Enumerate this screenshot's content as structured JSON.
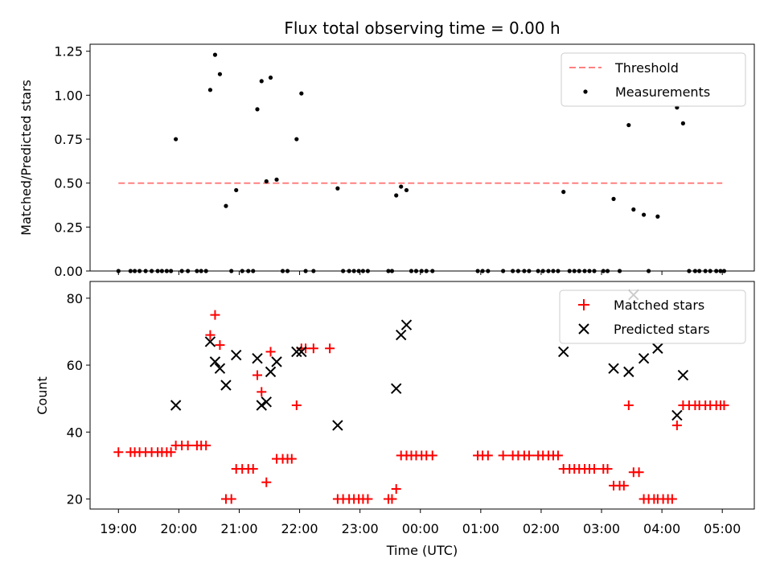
{
  "chart_data": [
    {
      "type": "scatter",
      "title": "Flux total observing time = 0.00 h",
      "xlabel": "",
      "ylabel": "Matched/Predicted stars",
      "ylim": [
        0,
        1.29
      ],
      "y_ticks": [
        0,
        0.25,
        0.5,
        0.75,
        1.0,
        1.25
      ],
      "y_tick_labels": [
        "0.00",
        "0.25",
        "0.50",
        "0.75",
        "1.00",
        "1.25"
      ],
      "x_ticks": [
        0,
        1,
        2,
        3,
        4,
        5,
        6,
        7,
        8,
        9,
        10
      ],
      "x_tick_labels": [
        "19:00",
        "20:00",
        "21:00",
        "22:00",
        "23:00",
        "00:00",
        "01:00",
        "02:00",
        "03:00",
        "04:00",
        "05:00"
      ],
      "xlim": [
        -0.47,
        10.53
      ],
      "legend": "top-right",
      "threshold": {
        "name": "Threshold",
        "value": 0.5,
        "x_range": [
          0,
          10
        ],
        "color": "#ff8080"
      },
      "measurements": {
        "name": "Measurements",
        "color": "#000000",
        "points": [
          [
            0.0,
            0
          ],
          [
            0.2,
            0
          ],
          [
            0.27,
            0
          ],
          [
            0.35,
            0
          ],
          [
            0.45,
            0
          ],
          [
            0.55,
            0
          ],
          [
            0.65,
            0
          ],
          [
            0.72,
            0
          ],
          [
            0.8,
            0
          ],
          [
            0.87,
            0
          ],
          [
            0.95,
            0.75
          ],
          [
            1.05,
            0
          ],
          [
            1.15,
            0
          ],
          [
            1.3,
            0
          ],
          [
            1.37,
            0
          ],
          [
            1.45,
            0
          ],
          [
            1.52,
            1.03
          ],
          [
            1.6,
            1.23
          ],
          [
            1.68,
            1.12
          ],
          [
            1.78,
            0.37
          ],
          [
            1.87,
            0
          ],
          [
            1.95,
            0.46
          ],
          [
            2.05,
            0
          ],
          [
            2.15,
            0
          ],
          [
            2.23,
            0
          ],
          [
            2.3,
            0.92
          ],
          [
            2.37,
            1.08
          ],
          [
            2.45,
            0.51
          ],
          [
            2.52,
            1.1
          ],
          [
            2.62,
            0.52
          ],
          [
            2.72,
            0
          ],
          [
            2.8,
            0
          ],
          [
            2.95,
            0.75
          ],
          [
            3.03,
            1.01
          ],
          [
            3.1,
            0
          ],
          [
            3.23,
            0
          ],
          [
            3.63,
            0.47
          ],
          [
            3.72,
            0
          ],
          [
            3.82,
            0
          ],
          [
            3.9,
            0
          ],
          [
            3.98,
            0
          ],
          [
            4.05,
            0
          ],
          [
            4.13,
            0
          ],
          [
            4.47,
            0
          ],
          [
            4.53,
            0
          ],
          [
            4.6,
            0.43
          ],
          [
            4.68,
            0.48
          ],
          [
            4.77,
            0.46
          ],
          [
            4.85,
            0
          ],
          [
            4.93,
            0
          ],
          [
            5.02,
            0
          ],
          [
            5.1,
            0
          ],
          [
            5.2,
            0
          ],
          [
            5.95,
            0
          ],
          [
            6.03,
            0
          ],
          [
            6.12,
            0
          ],
          [
            6.37,
            0
          ],
          [
            6.53,
            0
          ],
          [
            6.62,
            0
          ],
          [
            6.72,
            0
          ],
          [
            6.8,
            0
          ],
          [
            6.95,
            0
          ],
          [
            7.03,
            0
          ],
          [
            7.12,
            0
          ],
          [
            7.2,
            0
          ],
          [
            7.28,
            0
          ],
          [
            7.37,
            0.45
          ],
          [
            7.47,
            0
          ],
          [
            7.55,
            0
          ],
          [
            7.63,
            0
          ],
          [
            7.72,
            0
          ],
          [
            7.8,
            0
          ],
          [
            7.88,
            0
          ],
          [
            8.03,
            0
          ],
          [
            8.1,
            0
          ],
          [
            8.2,
            0.41
          ],
          [
            8.3,
            0
          ],
          [
            8.45,
            0.83
          ],
          [
            8.53,
            0.35
          ],
          [
            8.7,
            0.32
          ],
          [
            8.78,
            0
          ],
          [
            8.93,
            0.31
          ],
          [
            9.25,
            0.93
          ],
          [
            9.35,
            0.84
          ],
          [
            9.45,
            0
          ],
          [
            9.55,
            0
          ],
          [
            9.62,
            0
          ],
          [
            9.72,
            0
          ],
          [
            9.8,
            0
          ],
          [
            9.9,
            0
          ],
          [
            9.97,
            0
          ],
          [
            10.03,
            0
          ]
        ]
      }
    },
    {
      "type": "scatter",
      "title": "",
      "xlabel": "Time (UTC)",
      "ylabel": "Count",
      "ylim": [
        17,
        85
      ],
      "y_ticks": [
        20,
        40,
        60,
        80
      ],
      "y_tick_labels": [
        "20",
        "40",
        "60",
        "80"
      ],
      "x_ticks": [
        0,
        1,
        2,
        3,
        4,
        5,
        6,
        7,
        8,
        9,
        10
      ],
      "x_tick_labels": [
        "19:00",
        "20:00",
        "21:00",
        "22:00",
        "23:00",
        "00:00",
        "01:00",
        "02:00",
        "03:00",
        "04:00",
        "05:00"
      ],
      "xlim": [
        -0.47,
        10.53
      ],
      "legend": "top-right",
      "series": [
        {
          "name": "Matched stars",
          "marker": "plus",
          "color": "#ff0000",
          "points": [
            [
              0.0,
              34
            ],
            [
              0.2,
              34
            ],
            [
              0.27,
              34
            ],
            [
              0.35,
              34
            ],
            [
              0.45,
              34
            ],
            [
              0.55,
              34
            ],
            [
              0.65,
              34
            ],
            [
              0.72,
              34
            ],
            [
              0.8,
              34
            ],
            [
              0.87,
              34
            ],
            [
              0.95,
              36
            ],
            [
              1.05,
              36
            ],
            [
              1.15,
              36
            ],
            [
              1.3,
              36
            ],
            [
              1.37,
              36
            ],
            [
              1.45,
              36
            ],
            [
              1.52,
              69
            ],
            [
              1.6,
              75
            ],
            [
              1.68,
              66
            ],
            [
              1.78,
              20
            ],
            [
              1.87,
              20
            ],
            [
              1.95,
              29
            ],
            [
              2.05,
              29
            ],
            [
              2.15,
              29
            ],
            [
              2.23,
              29
            ],
            [
              2.3,
              57
            ],
            [
              2.37,
              52
            ],
            [
              2.45,
              25
            ],
            [
              2.52,
              64
            ],
            [
              2.62,
              32
            ],
            [
              2.72,
              32
            ],
            [
              2.8,
              32
            ],
            [
              2.87,
              32
            ],
            [
              2.95,
              48
            ],
            [
              3.03,
              65
            ],
            [
              3.1,
              65
            ],
            [
              3.23,
              65
            ],
            [
              3.5,
              65
            ],
            [
              3.63,
              20
            ],
            [
              3.72,
              20
            ],
            [
              3.82,
              20
            ],
            [
              3.9,
              20
            ],
            [
              3.98,
              20
            ],
            [
              4.05,
              20
            ],
            [
              4.13,
              20
            ],
            [
              4.47,
              20
            ],
            [
              4.53,
              20
            ],
            [
              4.6,
              23
            ],
            [
              4.68,
              33
            ],
            [
              4.77,
              33
            ],
            [
              4.85,
              33
            ],
            [
              4.93,
              33
            ],
            [
              5.02,
              33
            ],
            [
              5.1,
              33
            ],
            [
              5.2,
              33
            ],
            [
              5.95,
              33
            ],
            [
              6.03,
              33
            ],
            [
              6.12,
              33
            ],
            [
              6.37,
              33
            ],
            [
              6.53,
              33
            ],
            [
              6.62,
              33
            ],
            [
              6.72,
              33
            ],
            [
              6.8,
              33
            ],
            [
              6.95,
              33
            ],
            [
              7.03,
              33
            ],
            [
              7.12,
              33
            ],
            [
              7.2,
              33
            ],
            [
              7.28,
              33
            ],
            [
              7.37,
              29
            ],
            [
              7.47,
              29
            ],
            [
              7.55,
              29
            ],
            [
              7.63,
              29
            ],
            [
              7.72,
              29
            ],
            [
              7.8,
              29
            ],
            [
              7.88,
              29
            ],
            [
              8.03,
              29
            ],
            [
              8.1,
              29
            ],
            [
              8.2,
              24
            ],
            [
              8.3,
              24
            ],
            [
              8.37,
              24
            ],
            [
              8.45,
              48
            ],
            [
              8.53,
              28
            ],
            [
              8.62,
              28
            ],
            [
              8.7,
              20
            ],
            [
              8.78,
              20
            ],
            [
              8.87,
              20
            ],
            [
              8.93,
              20
            ],
            [
              9.02,
              20
            ],
            [
              9.1,
              20
            ],
            [
              9.17,
              20
            ],
            [
              9.25,
              42
            ],
            [
              9.35,
              48
            ],
            [
              9.45,
              48
            ],
            [
              9.55,
              48
            ],
            [
              9.62,
              48
            ],
            [
              9.72,
              48
            ],
            [
              9.8,
              48
            ],
            [
              9.9,
              48
            ],
            [
              9.97,
              48
            ],
            [
              10.03,
              48
            ]
          ]
        },
        {
          "name": "Predicted stars",
          "marker": "x",
          "color": "#000000",
          "points": [
            [
              0.95,
              48
            ],
            [
              1.52,
              67
            ],
            [
              1.6,
              61
            ],
            [
              1.68,
              59
            ],
            [
              1.78,
              54
            ],
            [
              1.95,
              63
            ],
            [
              2.3,
              62
            ],
            [
              2.37,
              48
            ],
            [
              2.45,
              49
            ],
            [
              2.52,
              58
            ],
            [
              2.62,
              61
            ],
            [
              2.95,
              64
            ],
            [
              3.03,
              64
            ],
            [
              3.63,
              42
            ],
            [
              4.6,
              53
            ],
            [
              4.68,
              69
            ],
            [
              4.77,
              72
            ],
            [
              7.37,
              64
            ],
            [
              8.2,
              59
            ],
            [
              8.45,
              58
            ],
            [
              8.53,
              81
            ],
            [
              8.7,
              62
            ],
            [
              8.93,
              65
            ],
            [
              9.25,
              45
            ],
            [
              9.35,
              57
            ]
          ]
        }
      ]
    }
  ]
}
